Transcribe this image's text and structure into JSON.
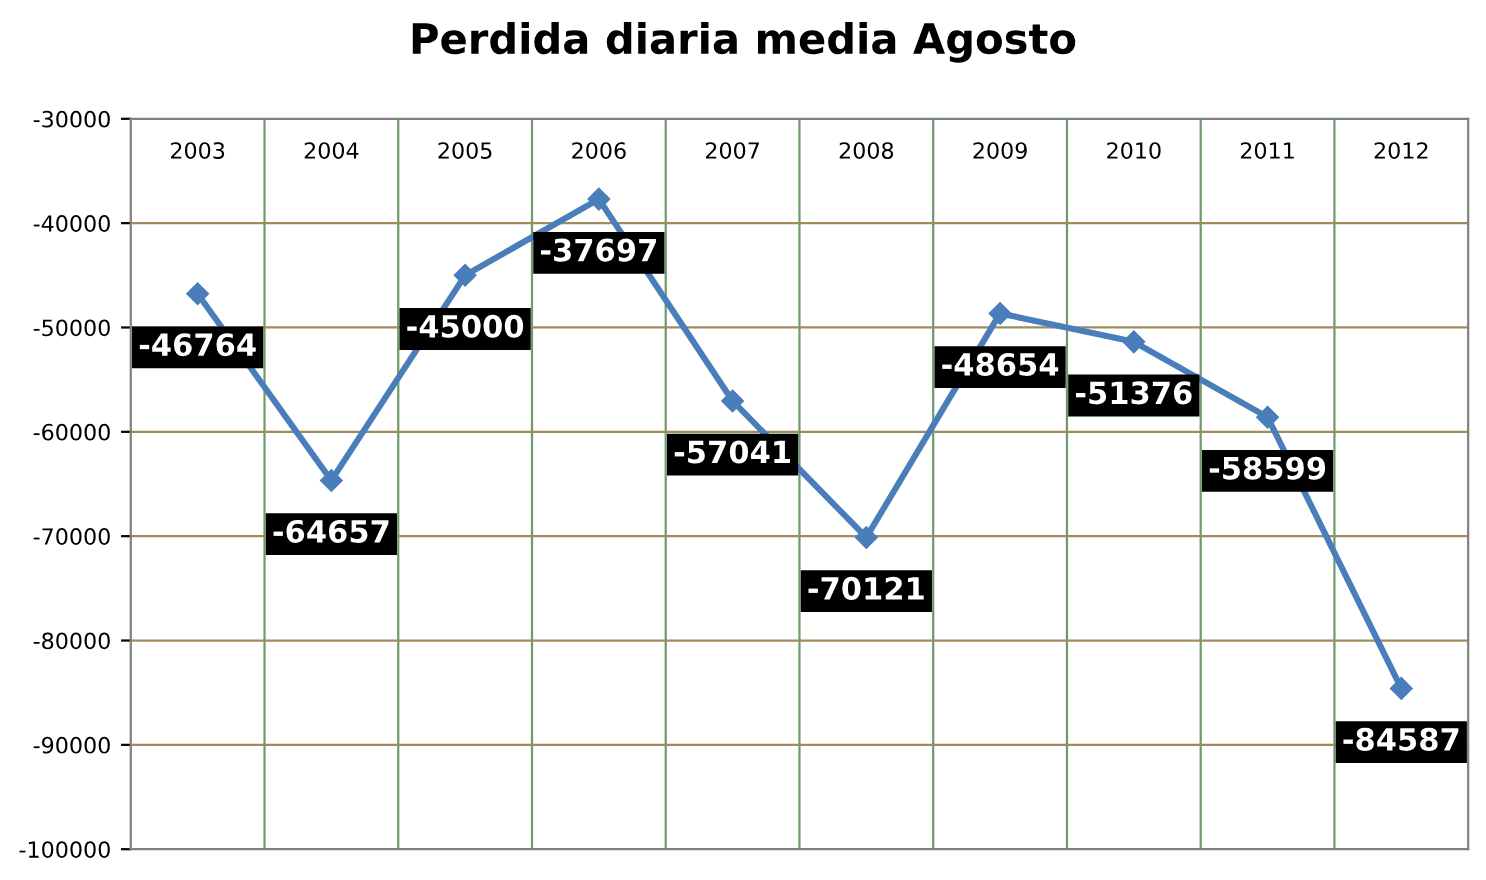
{
  "chart_data": {
    "type": "line",
    "title": "Perdida diaria media Agosto",
    "categories": [
      "2003",
      "2004",
      "2005",
      "2006",
      "2007",
      "2008",
      "2009",
      "2010",
      "2011",
      "2012"
    ],
    "series": [
      {
        "color": "#4a7ebb",
        "values": [
          -46764,
          -64657,
          -45000,
          -37697,
          -57041,
          -70121,
          -48654,
          -51376,
          -58599,
          -84587
        ]
      }
    ],
    "ylim": [
      -100000,
      -30000
    ],
    "yticks": [
      -100000,
      -90000,
      -80000,
      -70000,
      -60000,
      -50000,
      -40000,
      -30000
    ],
    "grid": true,
    "marker": "diamond",
    "data_labels": true
  }
}
